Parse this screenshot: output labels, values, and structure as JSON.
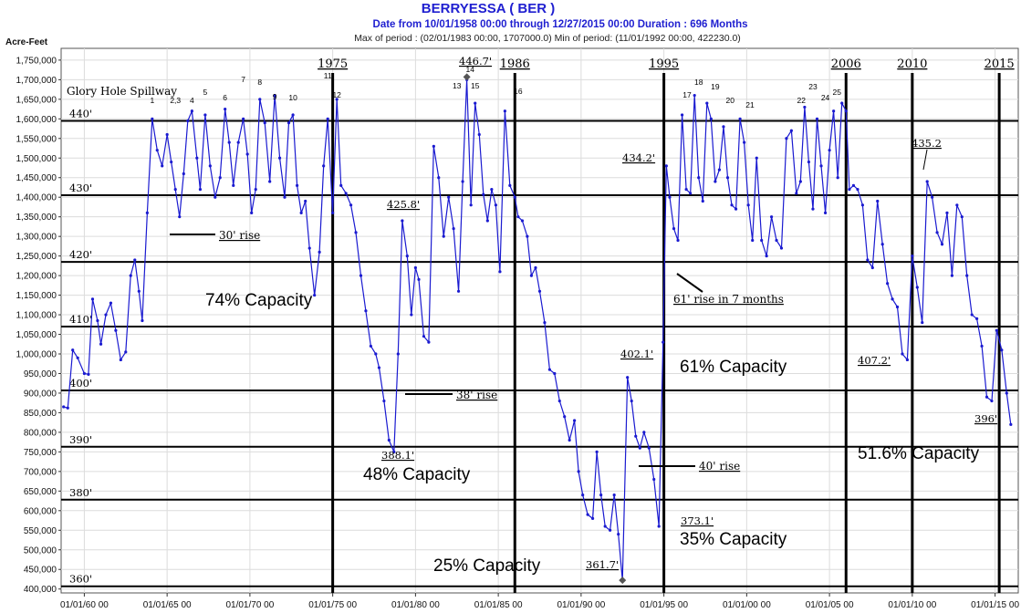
{
  "header": {
    "title": "BERRYESSA ( BER )",
    "subtitle": "Date from 10/01/1958 00:00 through 12/27/2015 00:00 Duration : 696 Months",
    "maxmin": "Max of period : (02/01/1983 00:00, 1707000.0)  Min of period: (11/01/1992 00:00,  422230.0)"
  },
  "chart_data": {
    "type": "line",
    "ylabel": "Acre-Feet",
    "ylim": [
      390000,
      1780000
    ],
    "xlim": [
      1958.6,
      2016.4
    ],
    "yticks": [
      "400,000",
      "450,000",
      "500,000",
      "550,000",
      "600,000",
      "650,000",
      "700,000",
      "750,000",
      "800,000",
      "850,000",
      "900,000",
      "950,000",
      "1,000,000",
      "1,050,000",
      "1,100,000",
      "1,150,000",
      "1,200,000",
      "1,250,000",
      "1,300,000",
      "1,350,000",
      "1,400,000",
      "1,450,000",
      "1,500,000",
      "1,550,000",
      "1,600,000",
      "1,650,000",
      "1,700,000",
      "1,750,000"
    ],
    "yticks_values": [
      400000,
      450000,
      500000,
      550000,
      600000,
      650000,
      700000,
      750000,
      800000,
      850000,
      900000,
      950000,
      1000000,
      1050000,
      1100000,
      1150000,
      1200000,
      1250000,
      1300000,
      1350000,
      1400000,
      1450000,
      1500000,
      1550000,
      1600000,
      1650000,
      1700000,
      1750000
    ],
    "xticks": [
      "01/01/60 00",
      "01/01/65 00",
      "01/01/70 00",
      "01/01/75 00",
      "01/01/80 00",
      "01/01/85 00",
      "01/01/90 00",
      "01/01/95 00",
      "01/01/00 00",
      "01/01/05 00",
      "01/01/10 00",
      "01/01/15 00"
    ],
    "xticks_values": [
      1960,
      1965,
      1970,
      1975,
      1980,
      1985,
      1990,
      1995,
      2000,
      2005,
      2010,
      2015
    ],
    "series": [
      {
        "color": "#1a1ad0",
        "x": [
          1958.75,
          1959.0,
          1959.3,
          1959.6,
          1960.0,
          1960.25,
          1960.5,
          1960.8,
          1961.0,
          1961.3,
          1961.6,
          1961.9,
          1962.2,
          1962.5,
          1962.8,
          1963.05,
          1963.3,
          1963.5,
          1963.8,
          1964.1,
          1964.4,
          1964.7,
          1965.0,
          1965.25,
          1965.5,
          1965.75,
          1966.0,
          1966.25,
          1966.5,
          1966.8,
          1967.0,
          1967.3,
          1967.6,
          1967.9,
          1968.2,
          1968.5,
          1968.75,
          1969.0,
          1969.3,
          1969.6,
          1969.85,
          1970.1,
          1970.35,
          1970.6,
          1970.9,
          1971.2,
          1971.5,
          1971.8,
          1972.1,
          1972.35,
          1972.6,
          1972.85,
          1973.1,
          1973.35,
          1973.6,
          1973.9,
          1974.2,
          1974.45,
          1974.7,
          1975.0,
          1975.25,
          1975.5,
          1975.8,
          1976.1,
          1976.4,
          1976.7,
          1977.0,
          1977.3,
          1977.6,
          1977.8,
          1978.1,
          1978.4,
          1978.7,
          1978.95,
          1979.2,
          1979.5,
          1979.75,
          1980.0,
          1980.2,
          1980.5,
          1980.8,
          1981.1,
          1981.4,
          1981.7,
          1982.0,
          1982.3,
          1982.6,
          1982.85,
          1983.1,
          1983.35,
          1983.6,
          1983.85,
          1984.1,
          1984.35,
          1984.6,
          1984.85,
          1985.1,
          1985.4,
          1985.7,
          1986.0,
          1986.2,
          1986.45,
          1986.75,
          1987.0,
          1987.25,
          1987.5,
          1987.8,
          1988.1,
          1988.4,
          1988.7,
          1989.0,
          1989.3,
          1989.6,
          1989.85,
          1990.1,
          1990.4,
          1990.7,
          1990.95,
          1991.2,
          1991.45,
          1991.75,
          1992.0,
          1992.25,
          1992.5,
          1992.8,
          1993.05,
          1993.3,
          1993.55,
          1993.8,
          1994.1,
          1994.4,
          1994.7,
          1994.95,
          1995.15,
          1995.35,
          1995.6,
          1995.85,
          1996.1,
          1996.35,
          1996.6,
          1996.85,
          1997.1,
          1997.35,
          1997.6,
          1997.85,
          1998.1,
          1998.35,
          1998.6,
          1998.85,
          1999.1,
          1999.35,
          1999.6,
          1999.85,
          2000.1,
          2000.35,
          2000.6,
          2000.9,
          2001.2,
          2001.5,
          2001.8,
          2002.1,
          2002.4,
          2002.7,
          2003.0,
          2003.25,
          2003.5,
          2003.75,
          2004.0,
          2004.25,
          2004.5,
          2004.75,
          2005.0,
          2005.25,
          2005.5,
          2005.75,
          2006.0,
          2006.2,
          2006.45,
          2006.7,
          2007.0,
          2007.3,
          2007.6,
          2007.9,
          2008.2,
          2008.5,
          2008.8,
          2009.1,
          2009.4,
          2009.7,
          2010.0,
          2010.3,
          2010.6,
          2010.9,
          2011.2,
          2011.5,
          2011.8,
          2012.1,
          2012.4,
          2012.7,
          2013.0,
          2013.3,
          2013.6,
          2013.9,
          2014.2,
          2014.5,
          2014.8,
          2015.1,
          2015.4,
          2015.7,
          2015.95
        ],
        "y": [
          865000,
          862000,
          1010000,
          990000,
          950000,
          948000,
          1140000,
          1085000,
          1025000,
          1100000,
          1130000,
          1060000,
          985000,
          1005000,
          1200000,
          1240000,
          1160000,
          1085000,
          1360000,
          1600000,
          1520000,
          1480000,
          1560000,
          1490000,
          1420000,
          1350000,
          1460000,
          1595000,
          1620000,
          1500000,
          1420000,
          1610000,
          1480000,
          1400000,
          1450000,
          1625000,
          1540000,
          1430000,
          1540000,
          1600000,
          1510000,
          1360000,
          1420000,
          1650000,
          1590000,
          1440000,
          1660000,
          1500000,
          1400000,
          1590000,
          1610000,
          1430000,
          1360000,
          1390000,
          1270000,
          1150000,
          1260000,
          1480000,
          1600000,
          1360000,
          1650000,
          1430000,
          1410000,
          1380000,
          1310000,
          1200000,
          1110000,
          1020000,
          1000000,
          965000,
          880000,
          780000,
          750000,
          1000000,
          1340000,
          1250000,
          1100000,
          1220000,
          1190000,
          1045000,
          1030000,
          1530000,
          1450000,
          1300000,
          1400000,
          1320000,
          1160000,
          1440000,
          1700000,
          1380000,
          1640000,
          1560000,
          1407000,
          1340000,
          1420000,
          1380000,
          1210000,
          1620000,
          1430000,
          1400000,
          1350000,
          1340000,
          1300000,
          1200000,
          1220000,
          1160000,
          1080000,
          960000,
          950000,
          880000,
          840000,
          780000,
          830000,
          700000,
          640000,
          590000,
          580000,
          750000,
          640000,
          560000,
          550000,
          640000,
          540000,
          422230,
          940000,
          880000,
          790000,
          760000,
          800000,
          760000,
          680000,
          560000,
          1030000,
          1480000,
          1400000,
          1320000,
          1290000,
          1610000,
          1420000,
          1410000,
          1660000,
          1450000,
          1390000,
          1640000,
          1600000,
          1440000,
          1470000,
          1580000,
          1450000,
          1380000,
          1370000,
          1600000,
          1540000,
          1380000,
          1290000,
          1500000,
          1290000,
          1250000,
          1350000,
          1290000,
          1270000,
          1550000,
          1570000,
          1410000,
          1440000,
          1630000,
          1490000,
          1370000,
          1600000,
          1480000,
          1360000,
          1520000,
          1620000,
          1450000,
          1640000,
          1620000,
          1420000,
          1430000,
          1420000,
          1380000,
          1240000,
          1220000,
          1390000,
          1280000,
          1180000,
          1140000,
          1120000,
          1000000,
          985000,
          1250000,
          1170000,
          1080000,
          1440000,
          1400000,
          1310000,
          1280000,
          1360000,
          1200000,
          1380000,
          1350000,
          1200000,
          1100000,
          1090000,
          1020000,
          890000,
          880000,
          1060000,
          1010000,
          900000,
          820000
        ]
      }
    ],
    "reference_lines": [
      {
        "label": "440'",
        "y": 1595000
      },
      {
        "label": "430'",
        "y": 1405000
      },
      {
        "label": "420'",
        "y": 1235000
      },
      {
        "label": "410'",
        "y": 1070000
      },
      {
        "label": "400'",
        "y": 907000
      },
      {
        "label": "390'",
        "y": 763000
      },
      {
        "label": "380'",
        "y": 628000
      },
      {
        "label": "360'",
        "y": 407000
      }
    ],
    "year_markers": [
      {
        "label": "1975",
        "x": 1975.0
      },
      {
        "label": "1986",
        "x": 1986.0
      },
      {
        "label": "1995",
        "x": 1995.0
      },
      {
        "label": "2006",
        "x": 2006.0
      },
      {
        "label": "2010",
        "x": 2010.0
      },
      {
        "label": "2015",
        "x": 2015.25
      }
    ],
    "peak_labels": [
      "1",
      "2,3",
      "4",
      "5",
      "6",
      "7",
      "8",
      "9",
      "10",
      "11",
      "12",
      "13",
      "14",
      "15",
      "16",
      "17",
      "18",
      "19",
      "20",
      "21",
      "22",
      "23",
      "24",
      "25"
    ],
    "annotations": {
      "spillway": "Glory Hole Spillway",
      "rise30": "30' rise",
      "rise38": "38' rise",
      "rise40": "40' rise",
      "rise61": "61' rise in 7 months",
      "el4258": "425.8'",
      "el4467": "446.7'",
      "el3881": "388.1'",
      "el4021": "402.1'",
      "el3731": "373.1'",
      "el3617": "361.7'",
      "el4342": "434.2'",
      "el4352": "435.2",
      "el4072": "407.2'",
      "el396": "396'",
      "cap74": "74% Capacity",
      "cap48": "48% Capacity",
      "cap25": "25% Capacity",
      "cap35": "35% Capacity",
      "cap61": "61% Capacity",
      "cap516": "51.6% Capacity"
    }
  }
}
